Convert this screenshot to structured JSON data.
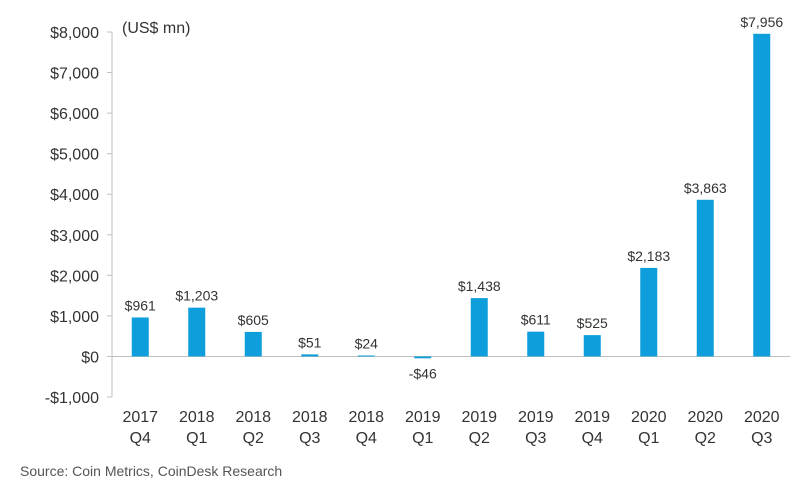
{
  "chart_data": {
    "type": "bar",
    "unit_label": "(US$ mn)",
    "categories": [
      [
        "2017",
        "Q4"
      ],
      [
        "2018",
        "Q1"
      ],
      [
        "2018",
        "Q2"
      ],
      [
        "2018",
        "Q3"
      ],
      [
        "2018",
        "Q4"
      ],
      [
        "2019",
        "Q1"
      ],
      [
        "2019",
        "Q2"
      ],
      [
        "2019",
        "Q3"
      ],
      [
        "2019",
        "Q4"
      ],
      [
        "2020",
        "Q1"
      ],
      [
        "2020",
        "Q2"
      ],
      [
        "2020",
        "Q3"
      ]
    ],
    "values": [
      961,
      1203,
      605,
      51,
      24,
      -46,
      1438,
      611,
      525,
      2183,
      3863,
      7956
    ],
    "data_labels": [
      "$961",
      "$1,203",
      "$605",
      "$51",
      "$24",
      "-$46",
      "$1,438",
      "$611",
      "$525",
      "$2,183",
      "$3,863",
      "$7,956"
    ],
    "ylim": [
      -1000,
      8000
    ],
    "yticks": [
      8000,
      7000,
      6000,
      5000,
      4000,
      3000,
      2000,
      1000,
      0,
      -1000
    ],
    "ytick_labels": [
      "$8,000",
      "$7,000",
      "$6,000",
      "$5,000",
      "$4,000",
      "$3,000",
      "$2,000",
      "$1,000",
      "$0",
      "-$1,000"
    ],
    "bar_color": "#0d9edb",
    "grid": false,
    "legend": "none"
  },
  "source_text": "Source: Coin Metrics, CoinDesk Research"
}
